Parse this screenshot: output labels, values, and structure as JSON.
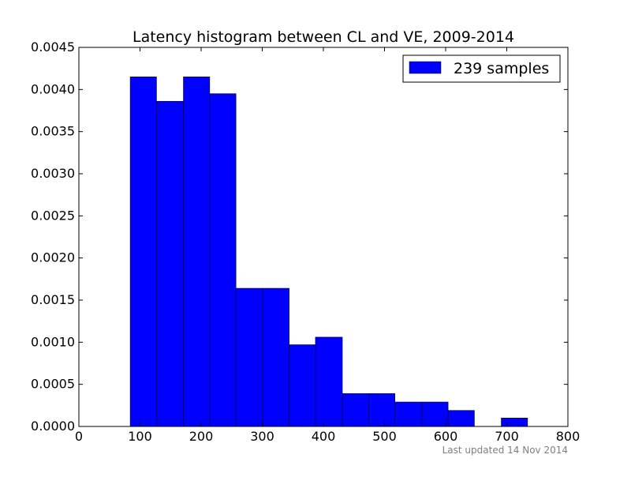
{
  "chart_data": {
    "type": "bar",
    "histogram": true,
    "title": "Latency histogram between CL and VE, 2009-2014",
    "xlabel": "",
    "ylabel": "",
    "xlim": [
      0,
      800
    ],
    "ylim": [
      0,
      0.0045
    ],
    "x_ticks": [
      0,
      100,
      200,
      300,
      400,
      500,
      600,
      700,
      800
    ],
    "x_tick_labels": [
      "0",
      "100",
      "200",
      "300",
      "400",
      "500",
      "600",
      "700",
      "800"
    ],
    "y_ticks": [
      0,
      0.0005,
      0.001,
      0.0015,
      0.002,
      0.0025,
      0.003,
      0.0035,
      0.004,
      0.0045
    ],
    "y_tick_labels": [
      "0.0000",
      "0.0005",
      "0.0010",
      "0.0015",
      "0.0020",
      "0.0025",
      "0.0030",
      "0.0035",
      "0.0040",
      "0.0045"
    ],
    "grid": false,
    "legend_position": "top-right",
    "series": [
      {
        "name": "239 samples",
        "color": "#0000ff",
        "bins": [
          {
            "x0": 84,
            "x1": 127,
            "value": 0.00415
          },
          {
            "x0": 127,
            "x1": 171,
            "value": 0.00386
          },
          {
            "x0": 171,
            "x1": 214,
            "value": 0.00415
          },
          {
            "x0": 214,
            "x1": 257,
            "value": 0.00395
          },
          {
            "x0": 257,
            "x1": 301,
            "value": 0.00164
          },
          {
            "x0": 301,
            "x1": 344,
            "value": 0.00164
          },
          {
            "x0": 344,
            "x1": 387,
            "value": 0.00097
          },
          {
            "x0": 387,
            "x1": 431,
            "value": 0.00106
          },
          {
            "x0": 431,
            "x1": 474,
            "value": 0.00039
          },
          {
            "x0": 474,
            "x1": 517,
            "value": 0.00039
          },
          {
            "x0": 517,
            "x1": 561,
            "value": 0.00029
          },
          {
            "x0": 561,
            "x1": 604,
            "value": 0.00029
          },
          {
            "x0": 604,
            "x1": 647,
            "value": 0.00019
          },
          {
            "x0": 647,
            "x1": 691,
            "value": 0
          },
          {
            "x0": 691,
            "x1": 734,
            "value": 0.0001
          }
        ]
      }
    ]
  },
  "footer": {
    "note": "Last updated 14 Nov 2014"
  }
}
